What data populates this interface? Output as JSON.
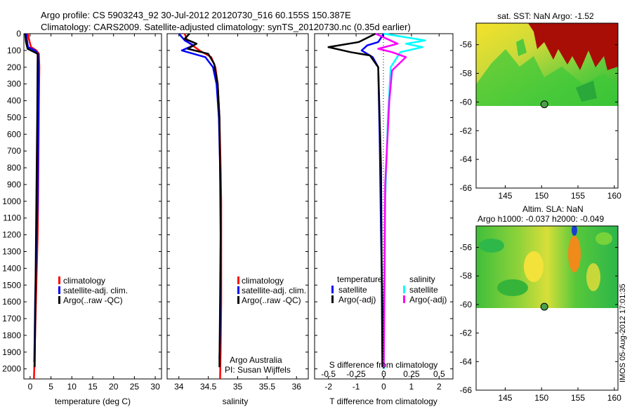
{
  "header": {
    "line1": "Argo profile: CS 5903243_92 30-Jul-2012 20120730_516 60.155S 150.387E",
    "line2": "Climatology: CARS2009. Satellite-adjusted climatology: synTS_20120730.nc (0.35d earlier)"
  },
  "colors": {
    "climatology": "#ff0000",
    "satellite": "#0000ff",
    "argo": "#000000",
    "salinity_satellite": "#00ffff",
    "salinity_argo": "#ff00ff"
  },
  "footer": {
    "stamp": "IMOS 05-Aug-2012 17:01:35"
  },
  "chart_data": [
    {
      "type": "line",
      "panel": "temperature",
      "xlabel": "temperature (deg C)",
      "ylabel": "",
      "xlim": [
        -1.5,
        31.5
      ],
      "ylim": [
        2060,
        0
      ],
      "xticks": [
        0,
        5,
        10,
        15,
        20,
        25,
        30
      ],
      "yticks": [
        0,
        100,
        200,
        300,
        400,
        500,
        600,
        700,
        800,
        900,
        1000,
        1100,
        1200,
        1300,
        1400,
        1500,
        1600,
        1700,
        1800,
        1900,
        2000
      ],
      "legend": [
        "climatology",
        "satellite-adj. clim.",
        "Argo(..raw -QC)"
      ],
      "series": [
        {
          "name": "climatology",
          "x": [
            -0.5,
            -0.3,
            0.2,
            1.5,
            2.1,
            2.2,
            2.1,
            2.0,
            1.9,
            1.8,
            1.6,
            1.4,
            1.2,
            1.0,
            0.9
          ],
          "y": [
            0,
            30,
            80,
            100,
            120,
            200,
            400,
            700,
            1000,
            1200,
            1400,
            1600,
            1800,
            2000,
            2060
          ]
        },
        {
          "name": "satellite-adj. clim.",
          "x": [
            -0.9,
            -0.8,
            -0.5,
            1.2,
            1.9,
            2.0,
            2.0,
            1.9,
            1.8,
            1.6,
            1.4,
            1.2,
            1.1,
            1.0
          ],
          "y": [
            0,
            30,
            80,
            100,
            120,
            200,
            400,
            700,
            1000,
            1200,
            1400,
            1600,
            1800,
            1960
          ]
        },
        {
          "name": "Argo(..raw -QC)",
          "x": [
            -1.2,
            -1.0,
            -0.6,
            1.0,
            1.8,
            1.8,
            1.7,
            1.5,
            1.3,
            1.1
          ],
          "y": [
            0,
            50,
            90,
            110,
            120,
            150,
            500,
            1000,
            1500,
            1990
          ]
        }
      ]
    },
    {
      "type": "line",
      "panel": "salinity",
      "xlabel": "salinity",
      "xlim": [
        33.8,
        36.2
      ],
      "ylim": [
        2060,
        0
      ],
      "xticks": [
        34,
        34.5,
        35,
        35.5,
        36
      ],
      "xticklabels": [
        "34",
        "34.5",
        "35",
        "35.5",
        "36"
      ],
      "legend": [
        "climatology",
        "satellite-adj. clim.",
        "Argo(..raw -QC)"
      ],
      "annotations": [
        "Argo Australia",
        "PI: Susan Wijffels"
      ],
      "series": [
        {
          "name": "climatology",
          "x": [
            34.1,
            34.15,
            34.35,
            34.55,
            34.62,
            34.66,
            34.69,
            34.71,
            34.72,
            34.72,
            34.72,
            34.71,
            34.7
          ],
          "y": [
            0,
            50,
            100,
            140,
            200,
            300,
            500,
            800,
            1000,
            1300,
            1600,
            1900,
            2060
          ]
        },
        {
          "name": "satellite-adj. clim.",
          "x": [
            34.0,
            34.1,
            34.25,
            34.05,
            34.45,
            34.58,
            34.64,
            34.68,
            34.7,
            34.71,
            34.71,
            34.7,
            34.69
          ],
          "y": [
            0,
            40,
            70,
            100,
            140,
            200,
            300,
            500,
            800,
            1000,
            1500,
            1800,
            1940
          ]
        },
        {
          "name": "Argo(..raw -QC)",
          "x": [
            34.18,
            34.1,
            34.3,
            34.15,
            34.5,
            34.6,
            34.66,
            34.69,
            34.7,
            34.71,
            34.7,
            34.69
          ],
          "y": [
            0,
            30,
            60,
            90,
            120,
            180,
            300,
            500,
            800,
            1200,
            1600,
            1990
          ]
        }
      ]
    },
    {
      "type": "line",
      "panel": "differences",
      "xlabel": "T difference from climatology",
      "x2label": "S difference from climatology",
      "xlim": [
        -2.5,
        2.5
      ],
      "ylim": [
        2060,
        0
      ],
      "xticks": [
        -2,
        -1,
        0,
        1,
        2
      ],
      "x2ticks": [
        -0.5,
        -0.25,
        0,
        0.25,
        0.5
      ],
      "legend": [
        "temperature",
        "satellite",
        "Argo(-adj)",
        "salinity",
        "satellite",
        "Argo(-adj)"
      ],
      "series": [
        {
          "name": "satellite",
          "group": "temperature",
          "x": [
            0,
            -0.2,
            -0.6,
            -0.8,
            -0.4,
            -0.2,
            -0.15,
            -0.1,
            -0.05,
            0.0
          ],
          "y": [
            0,
            50,
            70,
            100,
            140,
            200,
            600,
            1200,
            1600,
            2000
          ]
        },
        {
          "name": "Argo(-adj)",
          "group": "temperature",
          "x": [
            -0.3,
            -0.9,
            -2.0,
            -1.2,
            -0.5,
            -0.2,
            -0.1,
            -0.05
          ],
          "y": [
            0,
            50,
            80,
            110,
            130,
            200,
            800,
            1990
          ]
        },
        {
          "name": "satellite",
          "group": "salinity",
          "x": [
            0,
            1.5,
            0.8,
            1.4,
            0.6,
            0.25,
            0.15,
            0.05,
            0.0
          ],
          "y": [
            0,
            40,
            60,
            80,
            110,
            200,
            500,
            1000,
            2000
          ]
        },
        {
          "name": "Argo(-adj)",
          "group": "salinity",
          "x": [
            -0.3,
            0.5,
            -0.2,
            0.3,
            0.8,
            0.3,
            0.2,
            0.05,
            0.0
          ],
          "y": [
            0,
            60,
            90,
            110,
            140,
            220,
            400,
            900,
            1990
          ]
        }
      ]
    },
    {
      "type": "heatmap",
      "panel": "sst-map",
      "title": "sat. SST: NaN Argo: -1.52",
      "xlim": [
        141,
        160.5
      ],
      "ylim": [
        -66,
        -54.5
      ],
      "xticks": [
        145,
        150,
        155,
        160
      ],
      "yticks": [
        -56,
        -58,
        -60,
        -62,
        -64,
        -66
      ],
      "argo_position": {
        "lon": 150.387,
        "lat": -60.155
      }
    },
    {
      "type": "heatmap",
      "panel": "sla-map",
      "title": "Altim. SLA: NaN",
      "subtitle": "Argo h1000: -0.037 h2000: -0.049",
      "xlim": [
        141,
        160.5
      ],
      "ylim": [
        -66,
        -54.5
      ],
      "xticks": [
        145,
        150,
        155,
        160
      ],
      "yticks": [
        -56,
        -58,
        -60,
        -62,
        -64,
        -66
      ],
      "argo_position": {
        "lon": 150.387,
        "lat": -60.155
      }
    }
  ]
}
